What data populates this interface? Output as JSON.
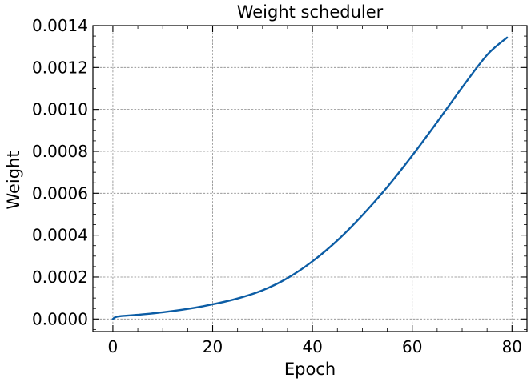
{
  "chart_data": {
    "type": "line",
    "title": "Weight scheduler",
    "xlabel": "Epoch",
    "ylabel": "Weight",
    "xlim": [
      -4,
      83
    ],
    "ylim": [
      -6e-05,
      0.0014
    ],
    "x_ticks": [
      0,
      20,
      40,
      60,
      80
    ],
    "x_tick_labels": [
      "0",
      "20",
      "40",
      "60",
      "80"
    ],
    "y_ticks": [
      0.0,
      0.0002,
      0.0004,
      0.0006,
      0.0008,
      0.001,
      0.0012,
      0.0014
    ],
    "y_tick_labels": [
      "0.0000",
      "0.0002",
      "0.0004",
      "0.0006",
      "0.0008",
      "0.0010",
      "0.0012",
      "0.0014"
    ],
    "grid": true,
    "colors": {
      "series": "#0C5DA5",
      "grid": "#888888"
    },
    "series": [
      {
        "x": [
          0,
          1,
          5,
          10,
          15,
          20,
          25,
          30,
          35,
          40,
          45,
          50,
          55,
          60,
          65,
          70,
          75,
          79
        ],
        "values": [
          0.0,
          1.2e-05,
          2e-05,
          3.2e-05,
          4.8e-05,
          7e-05,
          9.8e-05,
          0.000137,
          0.000195,
          0.000275,
          0.000375,
          0.000495,
          0.00063,
          0.00078,
          0.00094,
          0.001105,
          0.00126,
          0.001343
        ]
      }
    ]
  }
}
